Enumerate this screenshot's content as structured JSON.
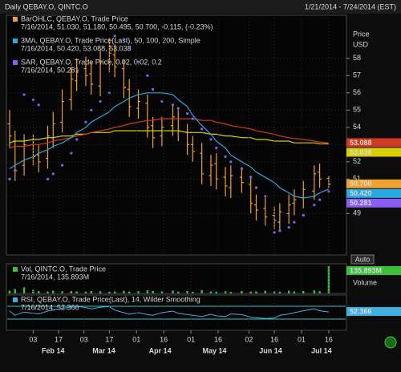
{
  "header": {
    "title": "Daily QEBAY.O, QINTC.O",
    "range": "1/21/2014 - 7/24/2014 (EST)"
  },
  "chart_data": [
    {
      "type": "ohlc",
      "x": [
        "2014-01-21",
        "2014-01-24",
        "2014-01-29",
        "2014-02-03",
        "2014-02-06",
        "2014-02-11",
        "2014-02-14",
        "2014-02-19",
        "2014-02-24",
        "2014-02-27",
        "2014-03-04",
        "2014-03-07",
        "2014-03-12",
        "2014-03-17",
        "2014-03-20",
        "2014-03-25",
        "2014-03-28",
        "2014-04-02",
        "2014-04-07",
        "2014-04-10",
        "2014-04-15",
        "2014-04-21",
        "2014-04-24",
        "2014-04-29",
        "2014-05-02",
        "2014-05-07",
        "2014-05-12",
        "2014-05-15",
        "2014-05-20",
        "2014-05-23",
        "2014-05-29",
        "2014-06-03",
        "2014-06-06",
        "2014-06-11",
        "2014-06-16",
        "2014-06-19",
        "2014-06-24",
        "2014-06-27",
        "2014-07-02",
        "2014-07-08",
        "2014-07-11",
        "2014-07-16"
      ],
      "xlim": [
        "2014-01-21",
        "2014-07-24"
      ],
      "ylim": [
        46.6,
        60.5
      ],
      "yticks": [
        49,
        50,
        51,
        52,
        53,
        54,
        55,
        56,
        57,
        58
      ],
      "y_label": [
        "Price",
        "USD"
      ],
      "scale_button": "Auto",
      "grid": true,
      "legend": [
        {
          "text": "BarOHLC, QEBAY.O, Trade Price",
          "values": "7/16/2014, 51.030, 51.180, 50.495, 50.700, -0.115, (-0.23%)",
          "color": "#f0a030"
        },
        {
          "text": "3MA, QEBAY.O, Trade Price(Last),  50, 100, 200, Simple",
          "values": "7/16/2014, 50.420, 53.088, 53.038",
          "color": "#2aa8e0"
        },
        {
          "text": "SAR, QEBAY.O, Trade Price, 0.02, 0.02, 0.2",
          "values": "7/16/2014, 50.281",
          "color": "#8a5cf0"
        }
      ],
      "series": [
        {
          "type": "ohlc",
          "color": "#f0a030",
          "tag": "50.700",
          "open": [
            54.2,
            53.2,
            51.8,
            53.0,
            52.4,
            52.2,
            53.4,
            54.3,
            55.6,
            56.7,
            57.4,
            57.1,
            56.4,
            57.9,
            58.2,
            57.4,
            56.2,
            55.1,
            55.4,
            54.1,
            53.5,
            54.1,
            54.5,
            53.7,
            53.0,
            52.5,
            51.2,
            51.9,
            51.1,
            50.5,
            51.1,
            50.7,
            49.5,
            49.3,
            48.9,
            48.5,
            49.0,
            49.6,
            49.9,
            50.3,
            51.4,
            51.03
          ],
          "high": [
            55.0,
            53.8,
            53.6,
            53.6,
            53.0,
            54.1,
            54.9,
            56.2,
            57.5,
            58.0,
            58.1,
            57.8,
            58.5,
            59.2,
            58.8,
            57.9,
            56.8,
            56.2,
            55.9,
            54.6,
            54.6,
            55.3,
            55.0,
            54.2,
            53.5,
            53.1,
            52.4,
            52.5,
            51.7,
            51.8,
            51.7,
            51.2,
            50.1,
            49.9,
            49.4,
            49.6,
            50.1,
            50.4,
            50.9,
            51.8,
            51.9,
            51.18
          ],
          "low": [
            52.8,
            50.9,
            51.2,
            51.8,
            51.4,
            51.6,
            52.8,
            53.7,
            55.0,
            56.1,
            56.4,
            55.9,
            55.8,
            57.2,
            56.9,
            55.7,
            54.6,
            54.5,
            53.4,
            52.8,
            52.9,
            53.5,
            53.2,
            52.4,
            52.0,
            50.7,
            50.6,
            50.4,
            50.0,
            49.9,
            50.2,
            49.0,
            48.6,
            48.3,
            48.1,
            48.0,
            48.4,
            48.9,
            49.3,
            49.8,
            50.5,
            50.495
          ],
          "close": [
            53.5,
            51.5,
            53.0,
            52.3,
            52.0,
            53.5,
            54.2,
            55.5,
            56.8,
            57.3,
            57.0,
            56.5,
            57.8,
            58.3,
            57.5,
            56.3,
            55.2,
            55.5,
            54.0,
            53.4,
            54.0,
            54.6,
            53.8,
            53.0,
            52.6,
            51.3,
            51.8,
            51.0,
            50.6,
            51.2,
            50.8,
            49.6,
            49.2,
            48.8,
            48.6,
            49.1,
            49.5,
            49.8,
            50.4,
            51.3,
            51.0,
            50.7
          ]
        },
        {
          "type": "line",
          "color": "#d8d000",
          "tag": "53.038",
          "values": [
            53.1,
            53.2,
            53.2,
            53.3,
            53.3,
            53.4,
            53.4,
            53.5,
            53.5,
            53.6,
            53.6,
            53.7,
            53.7,
            53.7,
            53.8,
            53.8,
            53.8,
            53.8,
            53.8,
            53.8,
            53.8,
            53.8,
            53.8,
            53.7,
            53.7,
            53.7,
            53.6,
            53.6,
            53.5,
            53.5,
            53.4,
            53.4,
            53.3,
            53.3,
            53.2,
            53.2,
            53.2,
            53.1,
            53.1,
            53.1,
            53.05,
            53.038
          ]
        },
        {
          "type": "line",
          "color": "#d03a22",
          "tag": "53.088",
          "values": [
            52.8,
            52.9,
            52.9,
            53.0,
            53.0,
            53.1,
            53.2,
            53.3,
            53.4,
            53.5,
            53.6,
            53.7,
            53.8,
            53.9,
            54.0,
            54.1,
            54.2,
            54.3,
            54.4,
            54.4,
            54.5,
            54.5,
            54.5,
            54.5,
            54.5,
            54.4,
            54.4,
            54.3,
            54.2,
            54.1,
            54.0,
            53.9,
            53.8,
            53.7,
            53.6,
            53.5,
            53.4,
            53.35,
            53.3,
            53.2,
            53.15,
            53.088
          ]
        },
        {
          "type": "line",
          "color": "#2aa8e0",
          "tag": "50.420",
          "values": [
            51.6,
            51.8,
            52.1,
            52.3,
            52.5,
            52.7,
            52.9,
            53.1,
            53.4,
            53.7,
            54.0,
            54.3,
            54.6,
            54.9,
            55.2,
            55.5,
            55.7,
            55.9,
            56.0,
            56.0,
            56.0,
            55.9,
            55.6,
            55.2,
            54.7,
            54.1,
            53.6,
            53.2,
            52.8,
            52.4,
            52.0,
            51.7,
            51.4,
            51.1,
            50.8,
            50.5,
            50.2,
            50.0,
            49.9,
            50.0,
            50.2,
            50.42
          ]
        },
        {
          "type": "scatter",
          "color": "#8a5cf0",
          "tag": "50.281",
          "values": [
            51.0,
            51.5,
            55.9,
            55.6,
            55.3,
            51.0,
            51.3,
            51.8,
            52.5,
            53.3,
            54.3,
            55.0,
            55.5,
            56.0,
            59.3,
            59.1,
            58.6,
            57.8,
            57.0,
            56.2,
            55.5,
            55.3,
            55.1,
            54.8,
            54.5,
            53.9,
            53.3,
            52.8,
            52.3,
            52.0,
            51.6,
            51.1,
            50.5,
            50.0,
            47.9,
            48.0,
            48.2,
            48.5,
            48.9,
            49.5,
            49.8,
            50.281
          ]
        }
      ]
    },
    {
      "type": "bar",
      "x": [
        "2014-01-21",
        "2014-01-24",
        "2014-01-29",
        "2014-02-03",
        "2014-02-06",
        "2014-02-11",
        "2014-02-14",
        "2014-02-19",
        "2014-02-24",
        "2014-02-27",
        "2014-03-04",
        "2014-03-07",
        "2014-03-12",
        "2014-03-17",
        "2014-03-20",
        "2014-03-25",
        "2014-03-28",
        "2014-04-02",
        "2014-04-07",
        "2014-04-10",
        "2014-04-15",
        "2014-04-21",
        "2014-04-24",
        "2014-04-29",
        "2014-05-02",
        "2014-05-07",
        "2014-05-12",
        "2014-05-15",
        "2014-05-20",
        "2014-05-23",
        "2014-05-29",
        "2014-06-03",
        "2014-06-06",
        "2014-06-11",
        "2014-06-16",
        "2014-06-19",
        "2014-06-24",
        "2014-06-27",
        "2014-07-02",
        "2014-07-08",
        "2014-07-11",
        "2014-07-16"
      ],
      "xlim": [
        "2014-01-21",
        "2014-07-24"
      ],
      "ylim": [
        0,
        140
      ],
      "y_label": "Volume",
      "legend": {
        "text": "Vol, QINTC.O, Trade Price",
        "values": "7/16/2014, 135.893M",
        "color": "#3cc03c"
      },
      "color": "#3cc03c",
      "tag": "135.893M",
      "values": [
        14,
        22,
        30,
        18,
        12,
        10,
        14,
        11,
        12,
        10,
        9,
        12,
        11,
        8,
        10,
        13,
        9,
        11,
        15,
        12,
        10,
        14,
        9,
        12,
        8,
        17,
        10,
        9,
        11,
        8,
        12,
        9,
        10,
        13,
        11,
        9,
        14,
        10,
        12,
        15,
        11,
        135.893
      ]
    },
    {
      "type": "line",
      "x": [
        "2014-01-21",
        "2014-01-24",
        "2014-01-29",
        "2014-02-03",
        "2014-02-06",
        "2014-02-11",
        "2014-02-14",
        "2014-02-19",
        "2014-02-24",
        "2014-02-27",
        "2014-03-04",
        "2014-03-07",
        "2014-03-12",
        "2014-03-17",
        "2014-03-20",
        "2014-03-25",
        "2014-03-28",
        "2014-04-02",
        "2014-04-07",
        "2014-04-10",
        "2014-04-15",
        "2014-04-21",
        "2014-04-24",
        "2014-04-29",
        "2014-05-02",
        "2014-05-07",
        "2014-05-12",
        "2014-05-15",
        "2014-05-20",
        "2014-05-23",
        "2014-05-29",
        "2014-06-03",
        "2014-06-06",
        "2014-06-11",
        "2014-06-16",
        "2014-06-19",
        "2014-06-24",
        "2014-06-27",
        "2014-07-02",
        "2014-07-08",
        "2014-07-11",
        "2014-07-16"
      ],
      "xlim": [
        "2014-01-21",
        "2014-07-24"
      ],
      "ylim": [
        0,
        100
      ],
      "levels": [
        30,
        70
      ],
      "legend": {
        "text": "RSI, QEBAY.O, Trade Price(Last),  14, Wilder Smoothing",
        "values": "7/16/2014, 52.366",
        "color": "#40b0e0"
      },
      "color": "#40b0e0",
      "tag": "52.366",
      "values": [
        55,
        42,
        52,
        48,
        46,
        55,
        58,
        63,
        68,
        70,
        66,
        62,
        67,
        69,
        58,
        50,
        45,
        50,
        44,
        42,
        50,
        55,
        48,
        44,
        42,
        38,
        45,
        40,
        38,
        46,
        44,
        36,
        34,
        32,
        33,
        42,
        46,
        50,
        56,
        62,
        56,
        52.366
      ],
      "xticks": [
        {
          "value": "2014-02-03",
          "label": "03"
        },
        {
          "value": "2014-02-17",
          "label": "17"
        },
        {
          "value": "2014-03-03",
          "label": "03"
        },
        {
          "value": "2014-03-17",
          "label": "17"
        },
        {
          "value": "2014-04-01",
          "label": "01"
        },
        {
          "value": "2014-04-16",
          "label": "16"
        },
        {
          "value": "2014-05-01",
          "label": "01"
        },
        {
          "value": "2014-05-16",
          "label": "16"
        },
        {
          "value": "2014-06-02",
          "label": "02"
        },
        {
          "value": "2014-06-16",
          "label": "16"
        },
        {
          "value": "2014-07-01",
          "label": "01"
        },
        {
          "value": "2014-07-16",
          "label": "16"
        }
      ],
      "xmonths": [
        {
          "value": "2014-02-14",
          "label": "Feb 14"
        },
        {
          "value": "2014-03-14",
          "label": "Mar 14"
        },
        {
          "value": "2014-04-14",
          "label": "Apr 14"
        },
        {
          "value": "2014-05-14",
          "label": "May 14"
        },
        {
          "value": "2014-06-14",
          "label": "Jun 14"
        },
        {
          "value": "2014-07-12",
          "label": "Jul 14"
        }
      ]
    }
  ]
}
